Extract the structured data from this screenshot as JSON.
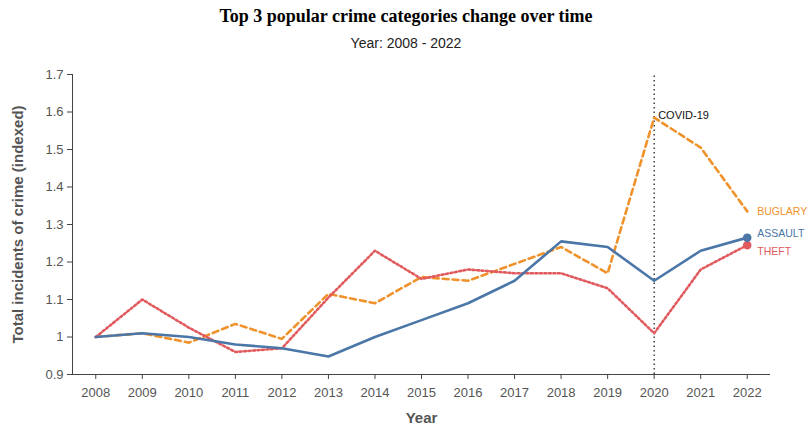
{
  "chart_data": {
    "type": "line",
    "title": "Top 3 popular crime categories change over time",
    "subtitle": "Year: 2008 - 2022",
    "x_label": "Year",
    "y_label": "Total incidents of crime (indexed)",
    "x": [
      2008,
      2009,
      2010,
      2011,
      2012,
      2013,
      2014,
      2015,
      2016,
      2017,
      2018,
      2019,
      2020,
      2021,
      2022
    ],
    "xlim": [
      2007.5,
      2022.5
    ],
    "xticks": [
      2008,
      2009,
      2010,
      2011,
      2012,
      2013,
      2014,
      2015,
      2016,
      2017,
      2018,
      2019,
      2020,
      2021,
      2022
    ],
    "ylim": [
      0.9,
      1.7
    ],
    "yticks": [
      0.9,
      1,
      1.1,
      1.2,
      1.3,
      1.4,
      1.5,
      1.6,
      1.7
    ],
    "grid": false,
    "annotations": [
      {
        "x": 2020,
        "text": "COVID-19"
      }
    ],
    "series": [
      {
        "name": "BUGLARY",
        "color": "#f0922b",
        "line_style": "dashed",
        "marker": "none",
        "values": [
          1.0,
          1.01,
          0.985,
          1.035,
          0.995,
          1.115,
          1.09,
          1.16,
          1.15,
          1.195,
          1.24,
          1.17,
          1.585,
          1.505,
          1.335
        ]
      },
      {
        "name": "THEFT",
        "color": "#e05a5e",
        "line_style": "dotted",
        "marker": "circle",
        "values": [
          1.0,
          1.1,
          1.025,
          0.96,
          0.97,
          1.105,
          1.23,
          1.155,
          1.18,
          1.17,
          1.17,
          1.13,
          1.01,
          1.18,
          1.245
        ]
      },
      {
        "name": "ASSAULT",
        "color": "#4a76a8",
        "line_style": "solid",
        "marker": "circle",
        "values": [
          1.0,
          1.01,
          1.0,
          0.98,
          0.97,
          0.948,
          1.0,
          1.045,
          1.09,
          1.15,
          1.255,
          1.24,
          1.15,
          1.23,
          1.265
        ]
      }
    ]
  }
}
